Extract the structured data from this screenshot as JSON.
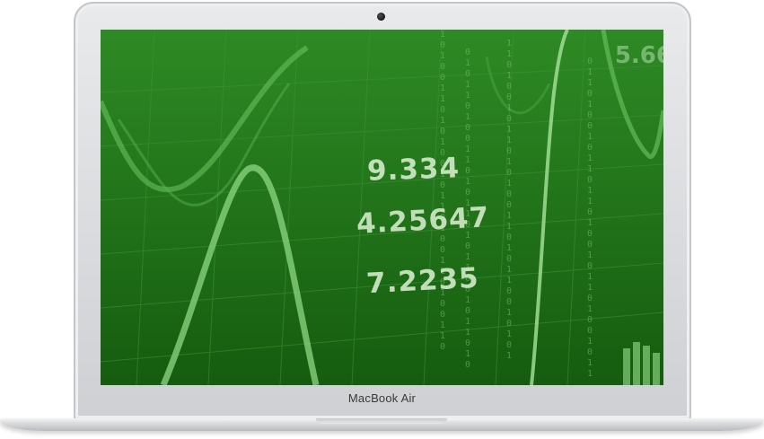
{
  "screen_numbers": [
    "9.334",
    "4.25647",
    "7.2235"
  ],
  "corner_number": "5.66",
  "binary_columns": [
    "0\n1\n0\n1\n1\n0\n1\n0\n0\n1\n1\n0\n1\n0\n1\n1\n0\n1\n0\n1\n1\n0\n0\n1\n0\n1\n1\n0\n1\n0",
    "1\n0\n1\n0\n0\n1\n1\n0\n1\n0\n1\n0\n0\n1\n0\n1\n1\n0\n1\n0\n0\n1\n1\n0\n1\n0\n0\n1\n1\n0",
    "1\n1\n0\n1\n0\n0\n1\n0\n1\n1\n0\n1\n0\n1\n0\n0\n1\n1\n0\n1\n0\n1\n1\n0\n0\n1\n0\n1\n0\n1",
    "0\n1\n1\n0\n1\n0\n0\n1\n0\n1\n1\n0\n1\n1\n0\n1\n0\n0\n1\n0\n1\n1\n0\n1\n0\n0\n1\n0\n1\n1"
  ],
  "brand_label": "MacBook Air",
  "colors": {
    "screen": "#1d6f15",
    "highlight": "#8fd884",
    "bezel": "#d9dadd"
  }
}
